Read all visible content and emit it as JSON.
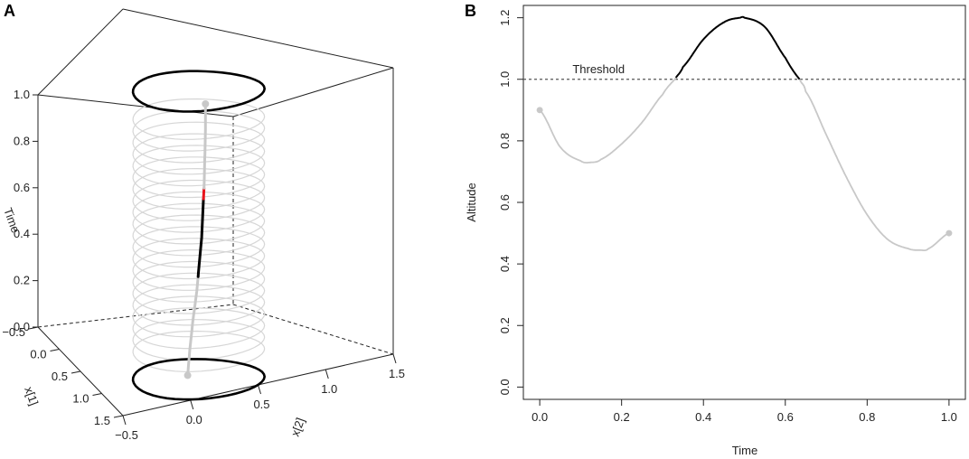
{
  "chart_data": [
    {
      "panel": "A",
      "type": "line",
      "view": "3d-perspective",
      "axes": {
        "time": {
          "label": "Time",
          "ticks": [
            "0.0",
            "0.2",
            "0.4",
            "0.6",
            "0.8",
            "1.0"
          ],
          "range": [
            0,
            1
          ]
        },
        "x1": {
          "label": "x[1]",
          "ticks": [
            "−0.5",
            "0.0",
            "0.5",
            "1.0",
            "1.5"
          ],
          "range": [
            -0.5,
            1.5
          ]
        },
        "x2": {
          "label": "x[2]",
          "ticks": [
            "−0.5",
            "0.0",
            "0.5",
            "1.0",
            "1.5"
          ],
          "range": [
            -0.5,
            1.5
          ]
        }
      },
      "threshold_cylinder": {
        "center": [
          0.5,
          0.5
        ],
        "radius": 0.5,
        "time_range": [
          0,
          1
        ]
      },
      "trajectory": {
        "x1": [
          0.35,
          0.37,
          0.4,
          0.44,
          0.48,
          0.52,
          0.56,
          0.6,
          0.63,
          0.66,
          0.68
        ],
        "x2": [
          0.5,
          0.51,
          0.52,
          0.53,
          0.53,
          0.53,
          0.52,
          0.51,
          0.5,
          0.49,
          0.48
        ],
        "time": [
          0.0,
          0.1,
          0.2,
          0.3,
          0.4,
          0.5,
          0.6,
          0.7,
          0.8,
          0.9,
          1.0
        ],
        "segments": [
          {
            "time_range": [
              0.0,
              0.36
            ],
            "color": "#c8c8c8"
          },
          {
            "time_range": [
              0.36,
              0.65
            ],
            "color": "#000000"
          },
          {
            "time_range": [
              0.65,
              0.69
            ],
            "color": "#e8141c"
          },
          {
            "time_range": [
              0.69,
              1.0
            ],
            "color": "#c8c8c8"
          }
        ]
      },
      "colors": {
        "exceed": "#000000",
        "below": "#c8c8c8",
        "crossing": "#e8141c"
      }
    },
    {
      "panel": "B",
      "type": "line",
      "xlabel": "Time",
      "ylabel": "Altitude",
      "xlim": [
        -0.04,
        1.04
      ],
      "ylim": [
        -0.04,
        1.24
      ],
      "xticks": [
        0.0,
        0.2,
        0.4,
        0.6,
        0.8,
        1.0
      ],
      "xtick_labels": [
        "0.0",
        "0.2",
        "0.4",
        "0.6",
        "0.8",
        "1.0"
      ],
      "yticks": [
        0.0,
        0.2,
        0.4,
        0.6,
        0.8,
        1.0,
        1.2
      ],
      "ytick_labels": [
        "0.0",
        "0.2",
        "0.4",
        "0.6",
        "0.8",
        "1.0",
        "1.2"
      ],
      "threshold": {
        "value": 1.0,
        "label": "Threshold",
        "style": "dashed"
      },
      "x": [
        0.0,
        0.05,
        0.1,
        0.125,
        0.15,
        0.2,
        0.25,
        0.3,
        0.33,
        0.35,
        0.4,
        0.45,
        0.49,
        0.5,
        0.55,
        0.6,
        0.635,
        0.65,
        0.7,
        0.75,
        0.8,
        0.85,
        0.9,
        0.93,
        0.95,
        1.0
      ],
      "y": [
        0.9,
        0.78,
        0.735,
        0.73,
        0.74,
        0.79,
        0.86,
        0.95,
        1.0,
        1.04,
        1.13,
        1.185,
        1.2,
        1.2,
        1.17,
        1.07,
        1.0,
        0.96,
        0.82,
        0.68,
        0.56,
        0.48,
        0.45,
        0.445,
        0.45,
        0.5
      ],
      "endpoints": [
        {
          "x": 0.0,
          "y": 0.9
        },
        {
          "x": 1.0,
          "y": 0.5
        }
      ],
      "colors": {
        "above_threshold": "#000000",
        "below_threshold": "#c8c8c8",
        "threshold_line": "#555555"
      }
    }
  ]
}
